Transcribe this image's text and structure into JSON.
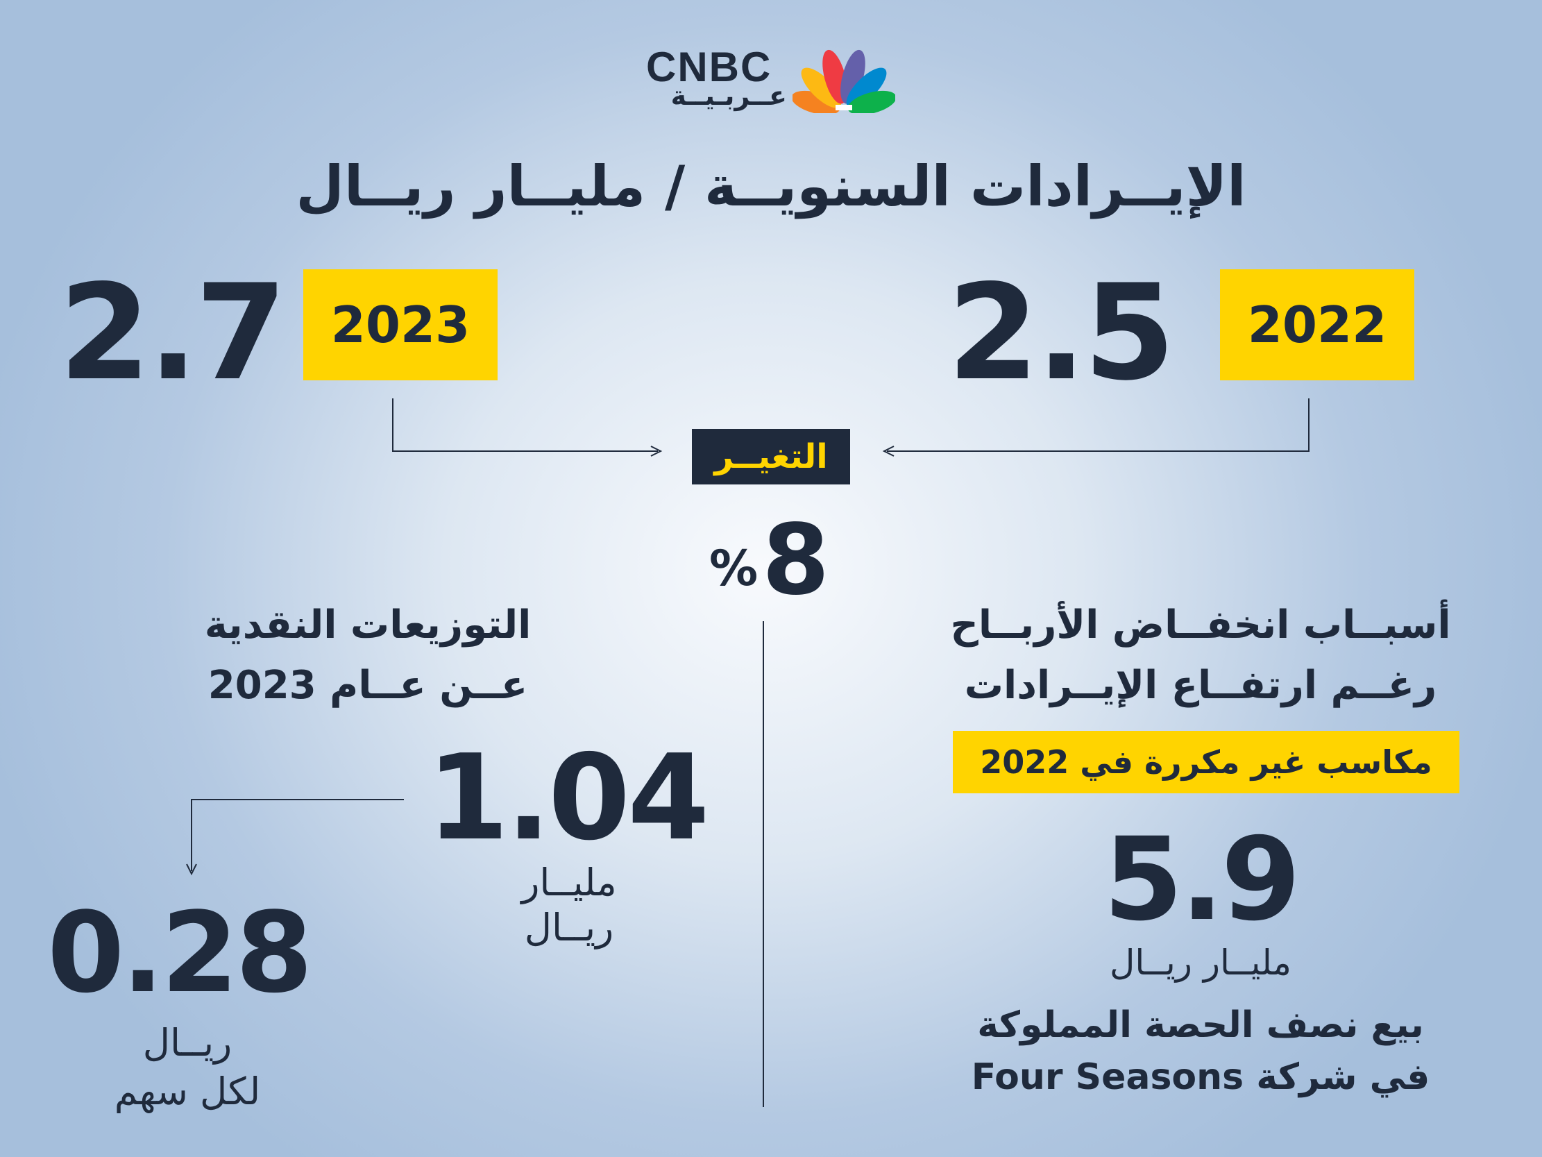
{
  "brand": {
    "name": "CNBC",
    "sub": "عــربـيــة",
    "peacock_colors": [
      "#ef3b43",
      "#f58220",
      "#fdb913",
      "#0db14b",
      "#0089cf",
      "#6460aa"
    ]
  },
  "title": "الإيــرادات السنويــة / مليــار ريــال",
  "revenue": {
    "year_a": "2023",
    "value_a": "2.7",
    "year_b": "2022",
    "value_b": "2.5"
  },
  "change": {
    "label": "التغيــر",
    "value": "8",
    "percent_sign": "%"
  },
  "dividends": {
    "title_line1": "التوزيعات النقدية",
    "title_line2": "عــن عــام 2023",
    "total_value": "1.04",
    "total_unit_line1": "مليــار",
    "total_unit_line2": "ريــال",
    "per_share_value": "0.28",
    "per_share_unit_line1": "ريــال",
    "per_share_unit_line2": "لكل سهم"
  },
  "reasons": {
    "title_line1": "أسبــاب انخفــاض الأربــاح",
    "title_line2": "رغــم ارتفــاع الإيــرادات",
    "highlight": "مكاسب غير مكررة في 2022",
    "value": "5.9",
    "unit": "مليــار ريــال",
    "desc_line1": "بيع نصف الحصة المملوكة",
    "desc_line2": "في شركة Four Seasons"
  },
  "colors": {
    "navy": "#1f2a3c",
    "yellow": "#ffd400"
  }
}
